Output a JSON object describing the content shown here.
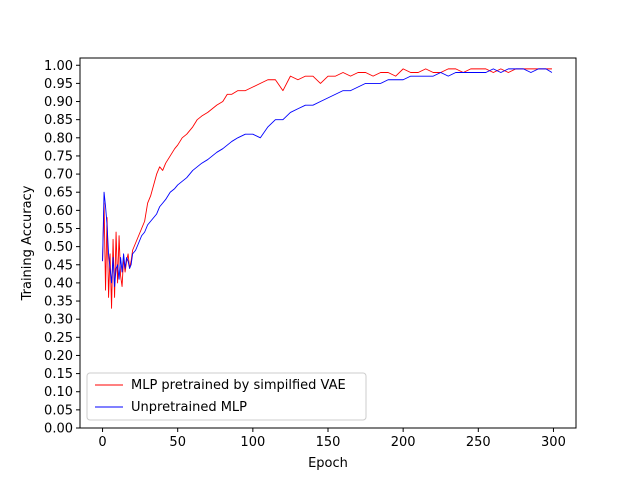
{
  "chart_data": {
    "type": "line",
    "title": "",
    "xlabel": "Epoch",
    "ylabel": "Training Accuracy",
    "xlim": [
      -15,
      315
    ],
    "ylim": [
      0.0,
      1.02
    ],
    "xticks": [
      0,
      50,
      100,
      150,
      200,
      250,
      300
    ],
    "yticks": [
      0.0,
      0.05,
      0.1,
      0.15,
      0.2,
      0.25,
      0.3,
      0.35,
      0.4,
      0.45,
      0.5,
      0.55,
      0.6,
      0.65,
      0.7,
      0.75,
      0.8,
      0.85,
      0.9,
      0.95,
      1.0
    ],
    "ytick_labels": [
      "0.00",
      "0.05",
      "0.10",
      "0.15",
      "0.20",
      "0.25",
      "0.30",
      "0.35",
      "0.40",
      "0.45",
      "0.50",
      "0.55",
      "0.60",
      "0.65",
      "0.70",
      "0.75",
      "0.80",
      "0.85",
      "0.90",
      "0.95",
      "1.00"
    ],
    "grid": false,
    "legend_position": "lower-left",
    "series": [
      {
        "name": "MLP pretrained by simpilfied VAE",
        "color": "#ff0000",
        "x": [
          0,
          1,
          2,
          3,
          4,
          5,
          6,
          7,
          8,
          9,
          10,
          11,
          12,
          13,
          14,
          15,
          16,
          17,
          18,
          19,
          20,
          22,
          24,
          26,
          28,
          30,
          32,
          34,
          36,
          38,
          40,
          42,
          45,
          48,
          50,
          53,
          56,
          60,
          63,
          66,
          70,
          73,
          76,
          80,
          83,
          86,
          90,
          95,
          100,
          105,
          110,
          115,
          120,
          125,
          130,
          135,
          140,
          145,
          150,
          155,
          160,
          165,
          170,
          175,
          180,
          185,
          190,
          195,
          200,
          205,
          210,
          215,
          220,
          225,
          230,
          235,
          240,
          245,
          250,
          255,
          260,
          265,
          270,
          275,
          280,
          285,
          290,
          295,
          299
        ],
        "y": [
          0.46,
          0.62,
          0.38,
          0.58,
          0.36,
          0.48,
          0.33,
          0.52,
          0.36,
          0.54,
          0.4,
          0.53,
          0.42,
          0.39,
          0.47,
          0.43,
          0.46,
          0.48,
          0.44,
          0.46,
          0.49,
          0.51,
          0.53,
          0.55,
          0.57,
          0.62,
          0.64,
          0.67,
          0.7,
          0.72,
          0.71,
          0.73,
          0.75,
          0.77,
          0.78,
          0.8,
          0.81,
          0.83,
          0.85,
          0.86,
          0.87,
          0.88,
          0.89,
          0.9,
          0.92,
          0.92,
          0.93,
          0.93,
          0.94,
          0.95,
          0.96,
          0.96,
          0.93,
          0.97,
          0.96,
          0.97,
          0.97,
          0.95,
          0.97,
          0.97,
          0.98,
          0.97,
          0.98,
          0.98,
          0.97,
          0.98,
          0.98,
          0.97,
          0.99,
          0.98,
          0.98,
          0.99,
          0.98,
          0.98,
          0.99,
          0.99,
          0.98,
          0.99,
          0.99,
          0.99,
          0.98,
          0.99,
          0.98,
          0.99,
          0.99,
          0.99,
          0.99,
          0.99,
          0.99
        ]
      },
      {
        "name": "Unpretrained MLP",
        "color": "#0000ff",
        "x": [
          0,
          1,
          2,
          3,
          4,
          5,
          6,
          7,
          8,
          9,
          10,
          11,
          12,
          13,
          14,
          15,
          16,
          17,
          18,
          19,
          20,
          22,
          24,
          26,
          28,
          30,
          32,
          34,
          36,
          38,
          40,
          42,
          45,
          48,
          50,
          53,
          56,
          60,
          63,
          66,
          70,
          73,
          76,
          80,
          83,
          86,
          90,
          95,
          100,
          105,
          110,
          115,
          120,
          125,
          130,
          135,
          140,
          145,
          150,
          155,
          160,
          165,
          170,
          175,
          180,
          185,
          190,
          195,
          200,
          205,
          210,
          215,
          220,
          225,
          230,
          235,
          240,
          245,
          250,
          255,
          260,
          265,
          270,
          275,
          280,
          285,
          290,
          295,
          299
        ],
        "y": [
          0.46,
          0.65,
          0.61,
          0.56,
          0.48,
          0.44,
          0.4,
          0.47,
          0.39,
          0.44,
          0.45,
          0.41,
          0.47,
          0.43,
          0.48,
          0.44,
          0.47,
          0.46,
          0.44,
          0.45,
          0.48,
          0.49,
          0.51,
          0.53,
          0.54,
          0.56,
          0.57,
          0.58,
          0.59,
          0.61,
          0.62,
          0.63,
          0.65,
          0.66,
          0.67,
          0.68,
          0.69,
          0.71,
          0.72,
          0.73,
          0.74,
          0.75,
          0.76,
          0.77,
          0.78,
          0.79,
          0.8,
          0.81,
          0.81,
          0.8,
          0.83,
          0.85,
          0.85,
          0.87,
          0.88,
          0.89,
          0.89,
          0.9,
          0.91,
          0.92,
          0.93,
          0.93,
          0.94,
          0.95,
          0.95,
          0.95,
          0.96,
          0.96,
          0.96,
          0.97,
          0.97,
          0.97,
          0.97,
          0.98,
          0.97,
          0.98,
          0.98,
          0.98,
          0.98,
          0.98,
          0.99,
          0.98,
          0.99,
          0.99,
          0.99,
          0.98,
          0.99,
          0.99,
          0.98
        ]
      }
    ]
  }
}
